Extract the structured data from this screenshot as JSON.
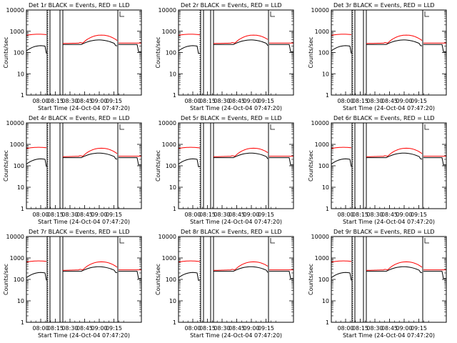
{
  "chart_data": [
    {
      "type": "line",
      "title": "Det 1r BLACK = Events, RED = LLD",
      "xlabel": "Start Time (24-Oct-04 07:47:20)",
      "ylabel": "Counts/sec",
      "yscale": "log",
      "ylim": [
        1,
        10000
      ],
      "y_ticks": [
        "1",
        "10",
        "100",
        "1000",
        "10000"
      ],
      "x_ticks": [
        "08:00",
        "08:15",
        "08:30",
        "08:45",
        "09:00",
        "09:15"
      ],
      "series": [
        {
          "name": "Events",
          "color": "#000000"
        },
        {
          "name": "LLD",
          "color": "#ff0000"
        }
      ]
    },
    {
      "type": "line",
      "title": "Det 2r BLACK = Events, RED = LLD",
      "xlabel": "Start Time (24-Oct-04 07:47:20)",
      "ylabel": "Counts/sec",
      "yscale": "log",
      "ylim": [
        1,
        10000
      ],
      "y_ticks": [
        "1",
        "10",
        "100",
        "1000",
        "10000"
      ],
      "x_ticks": [
        "08:00",
        "08:15",
        "08:30",
        "08:45",
        "09:00",
        "09:15"
      ],
      "series": [
        {
          "name": "Events",
          "color": "#000000"
        },
        {
          "name": "LLD",
          "color": "#ff0000"
        }
      ]
    },
    {
      "type": "line",
      "title": "Det 3r BLACK = Events, RED = LLD",
      "xlabel": "Start Time (24-Oct-04 07:47:20)",
      "ylabel": "Counts/sec",
      "yscale": "log",
      "ylim": [
        1,
        10000
      ],
      "y_ticks": [
        "1",
        "10",
        "100",
        "1000",
        "10000"
      ],
      "x_ticks": [
        "08:00",
        "08:15",
        "08:30",
        "08:45",
        "09:00",
        "09:15"
      ],
      "series": [
        {
          "name": "Events",
          "color": "#000000"
        },
        {
          "name": "LLD",
          "color": "#ff0000"
        }
      ]
    },
    {
      "type": "line",
      "title": "Det 4r BLACK = Events, RED = LLD",
      "xlabel": "Start Time (24-Oct-04 07:47:20)",
      "ylabel": "Counts/sec",
      "yscale": "log",
      "ylim": [
        1,
        10000
      ],
      "y_ticks": [
        "1",
        "10",
        "100",
        "1000",
        "10000"
      ],
      "x_ticks": [
        "08:00",
        "08:15",
        "08:30",
        "08:45",
        "09:00",
        "09:15"
      ],
      "series": [
        {
          "name": "Events",
          "color": "#000000"
        },
        {
          "name": "LLD",
          "color": "#ff0000"
        }
      ]
    },
    {
      "type": "line",
      "title": "Det 5r BLACK = Events, RED = LLD",
      "xlabel": "Start Time (24-Oct-04 07:47:20)",
      "ylabel": "Counts/sec",
      "yscale": "log",
      "ylim": [
        1,
        10000
      ],
      "y_ticks": [
        "1",
        "10",
        "100",
        "1000",
        "10000"
      ],
      "x_ticks": [
        "08:00",
        "08:15",
        "08:30",
        "08:45",
        "09:00",
        "09:15"
      ],
      "series": [
        {
          "name": "Events",
          "color": "#000000"
        },
        {
          "name": "LLD",
          "color": "#ff0000"
        }
      ]
    },
    {
      "type": "line",
      "title": "Det 6r BLACK = Events, RED = LLD",
      "xlabel": "Start Time (24-Oct-04 07:47:20)",
      "ylabel": "Counts/sec",
      "yscale": "log",
      "ylim": [
        1,
        10000
      ],
      "y_ticks": [
        "1",
        "10",
        "100",
        "1000",
        "10000"
      ],
      "x_ticks": [
        "08:00",
        "08:15",
        "08:30",
        "08:45",
        "09:00",
        "09:15"
      ],
      "series": [
        {
          "name": "Events",
          "color": "#000000"
        },
        {
          "name": "LLD",
          "color": "#ff0000"
        }
      ]
    },
    {
      "type": "line",
      "title": "Det 7r BLACK = Events, RED = LLD",
      "xlabel": "Start Time (24-Oct-04 07:47:20)",
      "ylabel": "Counts/sec",
      "yscale": "log",
      "ylim": [
        1,
        10000
      ],
      "y_ticks": [
        "1",
        "10",
        "100",
        "1000",
        "10000"
      ],
      "x_ticks": [
        "08:00",
        "08:15",
        "08:30",
        "08:45",
        "09:00",
        "09:15"
      ],
      "series": [
        {
          "name": "Events",
          "color": "#000000"
        },
        {
          "name": "LLD",
          "color": "#ff0000"
        }
      ]
    },
    {
      "type": "line",
      "title": "Det 8r BLACK = Events, RED = LLD",
      "xlabel": "Start Time (24-Oct-04 07:47:20)",
      "ylabel": "Counts/sec",
      "yscale": "log",
      "ylim": [
        1,
        10000
      ],
      "y_ticks": [
        "1",
        "10",
        "100",
        "1000",
        "10000"
      ],
      "x_ticks": [
        "08:00",
        "08:15",
        "08:30",
        "08:45",
        "09:00",
        "09:15"
      ],
      "series": [
        {
          "name": "Events",
          "color": "#000000"
        },
        {
          "name": "LLD",
          "color": "#ff0000"
        }
      ]
    },
    {
      "type": "line",
      "title": "Det 9r BLACK = Events, RED = LLD",
      "xlabel": "Start Time (24-Oct-04 07:47:20)",
      "ylabel": "Counts/sec",
      "yscale": "log",
      "ylim": [
        1,
        10000
      ],
      "y_ticks": [
        "1",
        "10",
        "100",
        "1000",
        "10000"
      ],
      "x_ticks": [
        "08:00",
        "08:15",
        "08:30",
        "08:45",
        "09:00",
        "09:15"
      ],
      "series": [
        {
          "name": "Events",
          "color": "#000000"
        },
        {
          "name": "LLD",
          "color": "#ff0000"
        }
      ]
    }
  ]
}
